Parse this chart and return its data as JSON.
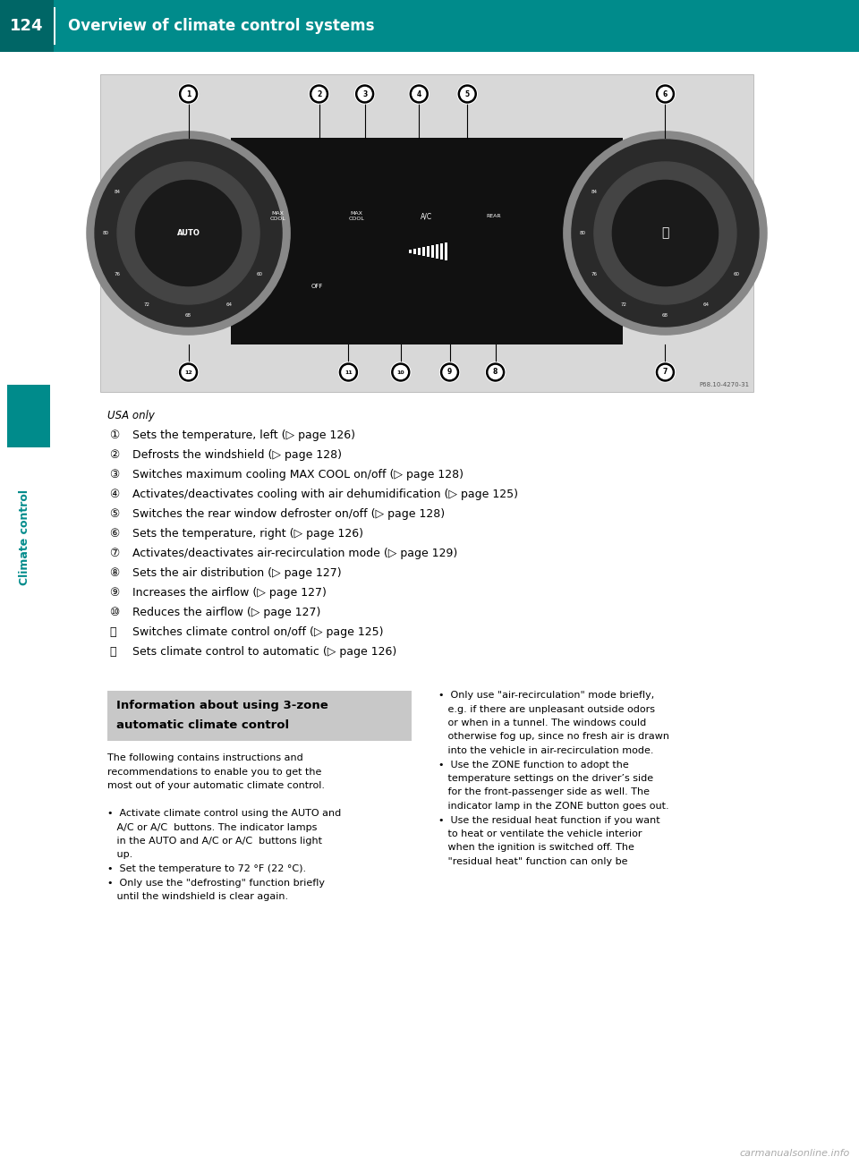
{
  "page_bg": "#ffffff",
  "header_bg": "#008B8B",
  "header_text_color": "#ffffff",
  "header_page_num": "124",
  "header_title": "Overview of climate control systems",
  "usa_only_text": "USA only",
  "items": [
    [
      "①",
      "Sets the temperature, left (▷ page 126)"
    ],
    [
      "②",
      "Defrosts the windshield (▷ page 128)"
    ],
    [
      "③",
      "Switches maximum cooling MAX COOL on/off (▷ page 128)"
    ],
    [
      "④",
      "Activates/deactivates cooling with air dehumidification (▷ page 125)"
    ],
    [
      "⑤",
      "Switches the rear window defroster on/off (▷ page 128)"
    ],
    [
      "⑥",
      "Sets the temperature, right (▷ page 126)"
    ],
    [
      "⑦",
      "Activates/deactivates air-recirculation mode (▷ page 129)"
    ],
    [
      "⑧",
      "Sets the air distribution (▷ page 127)"
    ],
    [
      "⑨",
      "Increases the airflow (▷ page 127)"
    ],
    [
      "⑩",
      "Reduces the airflow (▷ page 127)"
    ],
    [
      "⑪",
      "Switches climate control on/off (▷ page 125)"
    ],
    [
      "⑫",
      "Sets climate control to automatic (▷ page 126)"
    ]
  ],
  "info_box_title_line1": "Information about using 3-zone",
  "info_box_title_line2": "automatic climate control",
  "body_lines_left": [
    "The following contains instructions and",
    "recommendations to enable you to get the",
    "most out of your automatic climate control.",
    "",
    "•  Activate climate control using the AUTO and",
    "   A/C or A/C  buttons. The indicator lamps",
    "   in the AUTO and A/C or A/C  buttons light",
    "   up.",
    "•  Set the temperature to 72 °F (22 °C).",
    "•  Only use the \"defrosting\" function briefly",
    "   until the windshield is clear again."
  ],
  "body_lines_right": [
    "•  Only use \"air-recirculation\" mode briefly,",
    "   e.g. if there are unpleasant outside odors",
    "   or when in a tunnel. The windows could",
    "   otherwise fog up, since no fresh air is drawn",
    "   into the vehicle in air-recirculation mode.",
    "•  Use the ZONE function to adopt the",
    "   temperature settings on the driver’s side",
    "   for the front-passenger side as well. The",
    "   indicator lamp in the ZONE button goes out.",
    "•  Use the residual heat function if you want",
    "   to heat or ventilate the vehicle interior",
    "   when the ignition is switched off. The",
    "   \"residual heat\" function can only be"
  ],
  "watermark_text": "carmanualsonline.info",
  "watermark_color": "#aaaaaa",
  "teal_color": "#008B8B"
}
